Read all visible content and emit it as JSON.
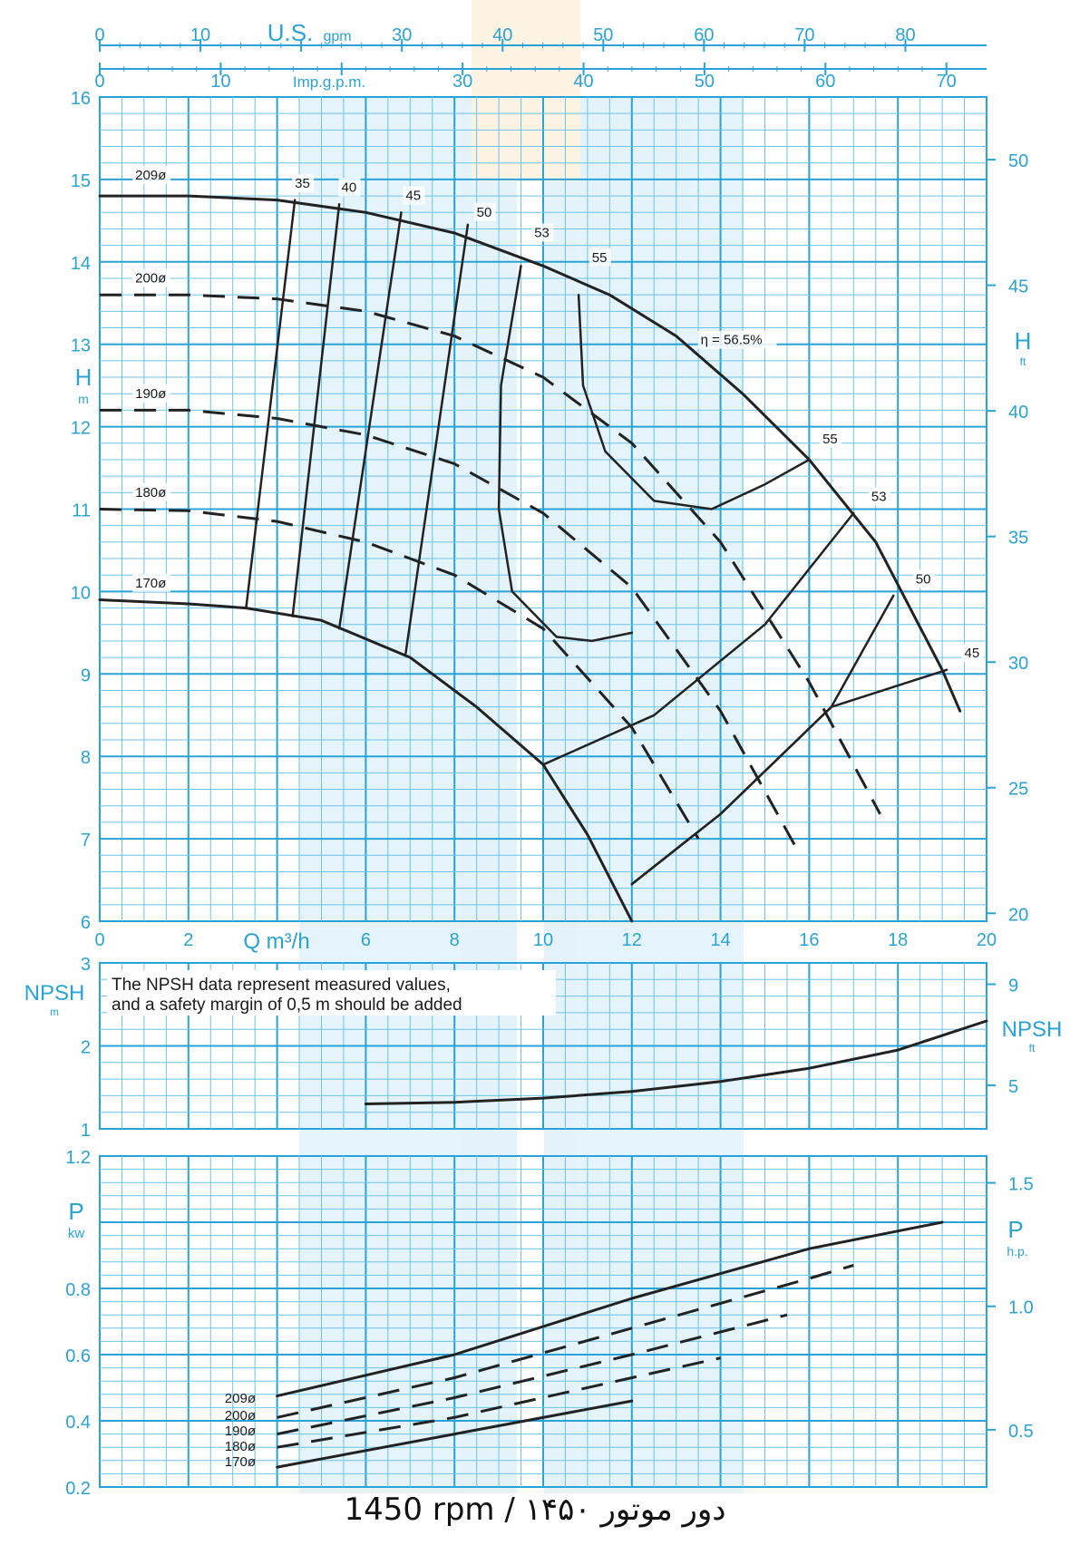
{
  "colors": {
    "grid_major": "#29a3d6",
    "grid_minor": "#6cc4e8",
    "text_blue": "#29a3d6",
    "curve": "#222222"
  },
  "footer": "1450 rpm / ۱۴۵۰ دور موتور",
  "chart_data": [
    {
      "type": "line",
      "panel": "head",
      "xlabel": "Q m³/h",
      "ylabel": "H",
      "ylabel_unit": "m",
      "y2label": "H",
      "y2label_unit": "ft",
      "xlim": [
        0,
        20
      ],
      "ylim": [
        6,
        16
      ],
      "x_ticks": [
        "0",
        "2",
        "4",
        "6",
        "8",
        "10",
        "12",
        "14",
        "16",
        "18",
        "20"
      ],
      "x_tick_values": [
        0,
        2,
        4,
        6,
        8,
        10,
        12,
        14,
        16,
        18,
        20
      ],
      "x_tick_labels_printed": [
        "0",
        "2",
        "",
        "6",
        "8",
        "10",
        "12",
        "14",
        "16",
        "18",
        "20"
      ],
      "y_ticks": [
        "6",
        "7",
        "8",
        "9",
        "10",
        "11",
        "12",
        "13",
        "14",
        "15",
        "16"
      ],
      "y2_ticks": [
        "20",
        "25",
        "30",
        "35",
        "40",
        "45",
        "50"
      ],
      "y2_tick_values_m": [
        6.096,
        7.62,
        9.144,
        10.668,
        12.192,
        13.716,
        15.24
      ],
      "top_axis_usgpm": {
        "label": "U.S.gpm",
        "ticks": [
          "0",
          "10",
          "20",
          "30",
          "40",
          "50",
          "60",
          "70",
          "80"
        ],
        "values_m3h": [
          0,
          2.271,
          4.542,
          6.814,
          9.085,
          11.356,
          13.627,
          15.898,
          18.17
        ],
        "printed": [
          "0",
          "10",
          "",
          "30",
          "40",
          "50",
          "60",
          "70",
          "80"
        ]
      },
      "top_axis_impgpm": {
        "label": "Imp.g.p.m.",
        "ticks": [
          "0",
          "10",
          "20",
          "30",
          "40",
          "50",
          "60",
          "70"
        ],
        "values_m3h": [
          0,
          2.728,
          5.455,
          8.183,
          10.911,
          13.638,
          16.366,
          19.094
        ],
        "printed": [
          "0",
          "10",
          "",
          "30",
          "40",
          "50",
          "60",
          "70"
        ]
      },
      "series": [
        {
          "name": "209ø",
          "style": "solid",
          "x": [
            0,
            2,
            4,
            6,
            8,
            10,
            11.5,
            13,
            14.5,
            16,
            17.5,
            19,
            19.4
          ],
          "y": [
            14.8,
            14.8,
            14.75,
            14.6,
            14.35,
            13.95,
            13.6,
            13.1,
            12.4,
            11.6,
            10.6,
            9.05,
            8.55
          ]
        },
        {
          "name": "200ø",
          "style": "dashed",
          "x": [
            0,
            2,
            4,
            6,
            8,
            10,
            12,
            14,
            16,
            17.6
          ],
          "y": [
            13.6,
            13.6,
            13.55,
            13.4,
            13.1,
            12.6,
            11.8,
            10.6,
            8.9,
            7.3
          ]
        },
        {
          "name": "190ø",
          "style": "dashed",
          "x": [
            0,
            2,
            4,
            6,
            8,
            10,
            12,
            14,
            15.8
          ],
          "y": [
            12.2,
            12.2,
            12.1,
            11.9,
            11.55,
            10.95,
            10.05,
            8.55,
            6.8
          ]
        },
        {
          "name": "180ø",
          "style": "dashed",
          "x": [
            0,
            2,
            4,
            6,
            8,
            10,
            12,
            13.5
          ],
          "y": [
            11.0,
            10.98,
            10.85,
            10.6,
            10.2,
            9.55,
            8.35,
            7.0
          ]
        },
        {
          "name": "170ø",
          "style": "solid",
          "x": [
            0,
            2,
            3.3,
            5,
            7,
            8.5,
            10,
            11,
            12
          ],
          "y": [
            9.9,
            9.85,
            9.8,
            9.65,
            9.2,
            8.6,
            7.9,
            7.05,
            6.0
          ]
        }
      ],
      "efficiency_lines": [
        {
          "label": "35",
          "style": "solid",
          "x": [
            3.3,
            4.4
          ],
          "y": [
            9.8,
            14.75
          ]
        },
        {
          "label": "40",
          "style": "solid",
          "x": [
            4.35,
            5.4
          ],
          "y": [
            9.7,
            14.7
          ]
        },
        {
          "label": "45",
          "style": "solid",
          "x": [
            5.4,
            6.8
          ],
          "y": [
            9.55,
            14.6
          ]
        },
        {
          "label": "50",
          "style": "solid",
          "x": [
            6.9,
            8.3
          ],
          "y": [
            9.25,
            14.45
          ]
        },
        {
          "label": "53",
          "style": "solid",
          "x": [
            9.5,
            9.05,
            9.0,
            9.3,
            10.3,
            11.1,
            12.0
          ],
          "y": [
            13.95,
            12.5,
            11.0,
            10.0,
            9.45,
            9.4,
            9.5
          ]
        },
        {
          "label": "55",
          "style": "solid",
          "x": [
            10.8,
            10.9,
            11.4,
            12.5,
            13.8,
            15.0,
            16.0
          ],
          "y": [
            13.6,
            12.5,
            11.7,
            11.1,
            11.0,
            11.3,
            11.6
          ]
        },
        {
          "label": "53",
          "style": "solid",
          "x": [
            10.0,
            12.5,
            15.0,
            17.0
          ],
          "y": [
            7.9,
            8.5,
            9.6,
            10.95
          ]
        },
        {
          "label": "50",
          "style": "solid",
          "x": [
            12.0,
            14.0,
            16.5,
            17.9
          ],
          "y": [
            6.45,
            7.3,
            8.6,
            9.95
          ]
        },
        {
          "label": "45",
          "style": "solid",
          "x": [
            12.0,
            14.0,
            16.5,
            19.1
          ],
          "y": [
            6.45,
            7.3,
            8.6,
            9.05
          ]
        }
      ],
      "annotations": [
        {
          "text": "η = 56.5%",
          "x": 13.55,
          "y": 13.0
        },
        {
          "text": "35",
          "x": 4.4,
          "y": 14.9
        },
        {
          "text": "40",
          "x": 5.45,
          "y": 14.85
        },
        {
          "text": "45",
          "x": 6.9,
          "y": 14.75
        },
        {
          "text": "50",
          "x": 8.5,
          "y": 14.55
        },
        {
          "text": "53",
          "x": 9.8,
          "y": 14.3
        },
        {
          "text": "55",
          "x": 11.1,
          "y": 14.0
        },
        {
          "text": "55",
          "x": 16.3,
          "y": 11.8
        },
        {
          "text": "53",
          "x": 17.4,
          "y": 11.1
        },
        {
          "text": "50",
          "x": 18.4,
          "y": 10.1
        },
        {
          "text": "45",
          "x": 19.5,
          "y": 9.2
        },
        {
          "text": "209ø",
          "x": 0.8,
          "y": 15.0
        },
        {
          "text": "200ø",
          "x": 0.8,
          "y": 13.75
        },
        {
          "text": "190ø",
          "x": 0.8,
          "y": 12.35
        },
        {
          "text": "180ø",
          "x": 0.8,
          "y": 11.15
        },
        {
          "text": "170ø",
          "x": 0.8,
          "y": 10.05
        }
      ]
    },
    {
      "type": "line",
      "panel": "npsh",
      "ylabel": "NPSH",
      "ylabel_unit": "m",
      "y2label": "NPSH",
      "y2label_unit": "ft",
      "xlim": [
        0,
        20
      ],
      "ylim": [
        1,
        3
      ],
      "y_ticks": [
        "1",
        "2",
        "3"
      ],
      "y2_ticks": [
        "5",
        "9"
      ],
      "y2_tick_values_m": [
        1.524,
        2.743
      ],
      "note": "The NPSH data represent measured values, and a safety margin of 0,5 m should be added",
      "series": [
        {
          "name": "NPSHr",
          "style": "solid",
          "x": [
            6,
            8,
            10,
            12,
            14,
            16,
            18,
            20
          ],
          "y": [
            1.3,
            1.32,
            1.37,
            1.45,
            1.57,
            1.73,
            1.95,
            2.3
          ]
        }
      ]
    },
    {
      "type": "line",
      "panel": "power",
      "ylabel": "P",
      "ylabel_unit": "kw",
      "y2label": "P",
      "y2label_unit": "h.p.",
      "xlim": [
        0,
        20
      ],
      "ylim": [
        0.2,
        1.2
      ],
      "y_ticks": [
        "0.2",
        "0.4",
        "0.6",
        "0.8",
        "1.2"
      ],
      "y_tick_values": [
        0.2,
        0.4,
        0.6,
        0.8,
        1.2
      ],
      "y2_ticks": [
        "0.5",
        "1.0",
        "1.5"
      ],
      "y2_tick_values_kw": [
        0.373,
        0.746,
        1.119
      ],
      "series": [
        {
          "name": "209ø",
          "style": "solid",
          "x": [
            4,
            8,
            12,
            16,
            19
          ],
          "y": [
            0.475,
            0.6,
            0.77,
            0.92,
            1.0
          ]
        },
        {
          "name": "200ø",
          "style": "dashed",
          "x": [
            4,
            8,
            12,
            16,
            17
          ],
          "y": [
            0.41,
            0.53,
            0.68,
            0.83,
            0.87
          ]
        },
        {
          "name": "190ø",
          "style": "dashed",
          "x": [
            4,
            8,
            12,
            15.5
          ],
          "y": [
            0.36,
            0.47,
            0.6,
            0.72
          ]
        },
        {
          "name": "180ø",
          "style": "dashed",
          "x": [
            4,
            8,
            12,
            14
          ],
          "y": [
            0.32,
            0.41,
            0.53,
            0.59
          ]
        },
        {
          "name": "170ø",
          "style": "solid",
          "x": [
            4,
            8,
            12
          ],
          "y": [
            0.26,
            0.36,
            0.46
          ]
        }
      ]
    }
  ]
}
